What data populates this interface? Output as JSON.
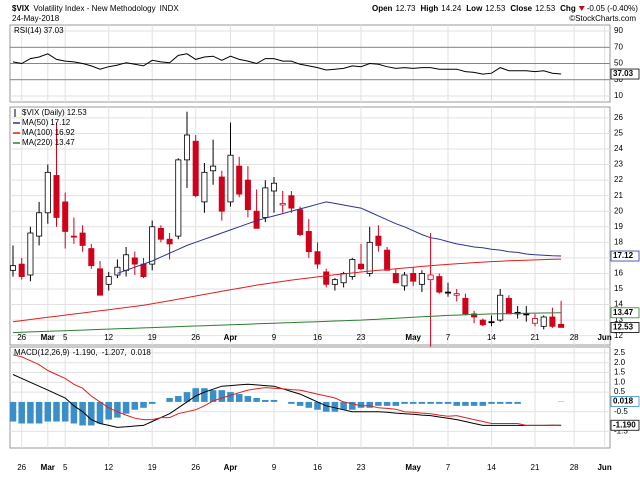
{
  "header": {
    "symbol": "$VIX",
    "name": "Volatility Index - New Methodology",
    "exchange": "INDX",
    "date": "24-May-2018",
    "credit": "©StockCharts.com",
    "quote": [
      {
        "label": "Open",
        "value": 12.73
      },
      {
        "label": "High",
        "value": 14.24
      },
      {
        "label": "Low",
        "value": 12.53
      },
      {
        "label": "Close",
        "value": 12.53
      },
      {
        "label": "Chg",
        "value": "-0.05 (-0.40%)"
      }
    ]
  },
  "chart_data": [
    {
      "type": "line",
      "grid": true,
      "xtick_labels": "none",
      "xlim": [
        -0.345,
        68.62
      ],
      "xticks": [
        {
          "value": 1,
          "label": "26"
        },
        {
          "value": 4,
          "label": "Mar"
        },
        {
          "value": 6,
          "label": "5"
        },
        {
          "value": 11,
          "label": "12"
        },
        {
          "value": 16,
          "label": "19"
        },
        {
          "value": 21,
          "label": "26"
        },
        {
          "value": 25,
          "label": "Apr"
        },
        {
          "value": 30,
          "label": "9"
        },
        {
          "value": 35,
          "label": "16"
        },
        {
          "value": 40,
          "label": "23"
        },
        {
          "value": 46,
          "label": "May"
        },
        {
          "value": 50,
          "label": "7"
        },
        {
          "value": 55,
          "label": "14"
        },
        {
          "value": 60,
          "label": "21"
        },
        {
          "value": 64.5,
          "label": "28"
        },
        {
          "value": 68,
          "label": "Jun"
        }
      ],
      "ylim": [
        2.6,
        97.4
      ],
      "yticks": [
        10,
        30,
        50,
        70,
        90
      ],
      "reference_lines": [
        30,
        50,
        70
      ],
      "series": [
        {
          "name": "RSI(14)",
          "color": "#000000",
          "last": 37.03,
          "axis_label": true,
          "values": [
            52,
            50,
            56,
            58,
            62,
            55,
            53,
            52,
            50,
            47,
            43,
            46,
            48,
            51,
            49,
            47,
            54,
            52,
            51,
            60,
            62,
            55,
            58,
            59,
            54,
            59,
            55,
            53,
            50,
            56,
            56,
            53,
            53,
            49,
            47,
            45,
            42,
            43,
            44,
            47,
            46,
            50,
            49,
            46,
            44,
            45,
            44,
            45,
            45,
            43,
            43,
            43,
            40,
            39,
            37,
            38,
            45,
            41,
            41,
            41,
            40,
            41,
            38,
            37.03
          ]
        }
      ]
    },
    {
      "type": "candlestick",
      "name": "$VIX (Daily)",
      "last": 12.53,
      "up_color": "#000000",
      "down_color": "#d0021b",
      "grid": true,
      "xtick_labels": "inside",
      "xlim": [
        -0.345,
        68.62
      ],
      "xticks": [
        {
          "value": 1,
          "label": "26"
        },
        {
          "value": 4,
          "label": "Mar"
        },
        {
          "value": 6,
          "label": "5"
        },
        {
          "value": 11,
          "label": "12"
        },
        {
          "value": 16,
          "label": "19"
        },
        {
          "value": 21,
          "label": "26"
        },
        {
          "value": 25,
          "label": "Apr"
        },
        {
          "value": 30,
          "label": "9"
        },
        {
          "value": 35,
          "label": "16"
        },
        {
          "value": 40,
          "label": "23"
        },
        {
          "value": 46,
          "label": "May"
        },
        {
          "value": 50,
          "label": "7"
        },
        {
          "value": 55,
          "label": "14"
        },
        {
          "value": 60,
          "label": "21"
        },
        {
          "value": 64.5,
          "label": "28"
        },
        {
          "value": 68,
          "label": "Jun"
        }
      ],
      "ylim": [
        11.4,
        26.7
      ],
      "yticks": [
        12,
        13,
        14,
        15,
        16,
        17,
        18,
        19,
        20,
        21,
        22,
        23,
        24,
        25,
        26
      ],
      "open": [
        16.2,
        16.6,
        15.9,
        18.4,
        19.9,
        22.3,
        20.6,
        18.4,
        18.6,
        17.6,
        16.3,
        15.3,
        15.9,
        16.2,
        17.0,
        16.6,
        16.6,
        18.9,
        18.2,
        18.4,
        23.3,
        24.5,
        20.6,
        22.6,
        22.2,
        20.6,
        22.9,
        22.0,
        20.0,
        19.6,
        21.3,
        20.4,
        21.0,
        20.1,
        18.7,
        17.4,
        16.1,
        15.3,
        15.4,
        15.8,
        16.6,
        16.0,
        18.4,
        17.5,
        16.0,
        15.2,
        16.0,
        15.3,
        15.6,
        15.8,
        14.8,
        14.6,
        14.4,
        13.4,
        13.0,
        12.9,
        13.0,
        14.4,
        13.5,
        13.4,
        12.8,
        12.6,
        13.2,
        12.73
      ],
      "high": [
        17.8,
        17.0,
        19.0,
        20.6,
        23.0,
        25.7,
        21.2,
        19.6,
        19.1,
        17.9,
        16.8,
        16.1,
        16.9,
        17.7,
        17.4,
        17.0,
        19.4,
        19.1,
        18.6,
        23.4,
        26.4,
        24.9,
        23.1,
        24.6,
        22.6,
        25.7,
        23.5,
        22.9,
        21.4,
        22.0,
        22.2,
        21.3,
        21.3,
        20.3,
        19.5,
        18.0,
        16.3,
        15.7,
        16.1,
        17.0,
        17.9,
        19.0,
        19.1,
        17.7,
        16.3,
        16.1,
        16.4,
        16.2,
        18.6,
        16.0,
        15.4,
        15.0,
        14.7,
        13.6,
        13.1,
        13.3,
        15.0,
        14.6,
        13.9,
        13.9,
        13.4,
        13.3,
        13.8,
        14.24
      ],
      "low": [
        15.8,
        15.6,
        15.5,
        17.8,
        19.2,
        19.0,
        17.6,
        17.9,
        17.4,
        16.3,
        14.6,
        14.9,
        15.7,
        15.8,
        15.9,
        15.7,
        16.2,
        18.0,
        16.9,
        18.2,
        21.5,
        20.9,
        19.9,
        21.7,
        19.4,
        20.3,
        20.9,
        19.6,
        18.9,
        19.3,
        19.9,
        19.9,
        19.9,
        18.4,
        17.0,
        16.3,
        15.1,
        14.9,
        15.1,
        15.6,
        16.2,
        15.8,
        17.4,
        16.2,
        15.4,
        14.9,
        15.2,
        14.8,
        11.0,
        14.7,
        14.5,
        14.2,
        13.3,
        12.8,
        12.6,
        12.6,
        12.9,
        13.4,
        13.1,
        12.9,
        12.6,
        12.4,
        12.5,
        12.53
      ],
      "close": [
        16.5,
        15.8,
        18.6,
        19.9,
        22.5,
        19.6,
        18.7,
        18.4,
        17.8,
        16.5,
        14.6,
        15.8,
        16.4,
        17.2,
        16.6,
        15.8,
        19.0,
        18.2,
        17.9,
        23.3,
        24.9,
        21.0,
        22.5,
        22.9,
        20.0,
        23.6,
        21.1,
        20.1,
        18.9,
        21.5,
        21.8,
        20.5,
        20.2,
        18.5,
        17.4,
        16.6,
        15.3,
        15.6,
        16.0,
        16.9,
        16.3,
        18.0,
        17.8,
        16.2,
        15.4,
        15.9,
        15.5,
        16.0,
        15.9,
        14.8,
        14.8,
        14.7,
        13.4,
        13.2,
        12.7,
        12.9,
        14.6,
        13.4,
        13.4,
        13.4,
        13.1,
        13.2,
        12.6,
        12.53
      ],
      "series": [
        {
          "name": "MA(50)",
          "color": "#2a3590",
          "last": 17.12,
          "axis_label": true,
          "values": [
            null,
            null,
            null,
            null,
            null,
            null,
            null,
            null,
            null,
            null,
            null,
            null,
            16.0,
            16.2,
            16.4,
            16.6,
            16.8,
            17.05,
            17.3,
            17.55,
            17.8,
            18.0,
            18.2,
            18.4,
            18.6,
            18.8,
            19.0,
            19.2,
            19.4,
            19.55,
            19.7,
            19.85,
            20.0,
            20.15,
            20.3,
            20.45,
            20.6,
            20.5,
            20.4,
            20.3,
            20.2,
            19.95,
            19.7,
            19.45,
            19.2,
            19.0,
            18.75,
            18.5,
            18.3,
            18.2,
            18.05,
            17.9,
            17.8,
            17.7,
            17.65,
            17.55,
            17.5,
            17.4,
            17.35,
            17.25,
            17.2,
            17.17,
            17.14,
            17.12
          ]
        },
        {
          "name": "MA(100)",
          "color": "#e02020",
          "last": 16.92,
          "axis_label": false,
          "values": [
            12.9,
            12.97,
            13.04,
            13.11,
            13.18,
            13.25,
            13.32,
            13.39,
            13.46,
            13.53,
            13.6,
            13.67,
            13.74,
            13.81,
            13.88,
            13.95,
            14.05,
            14.15,
            14.25,
            14.35,
            14.45,
            14.55,
            14.65,
            14.75,
            14.85,
            14.95,
            15.05,
            15.15,
            15.25,
            15.33,
            15.41,
            15.49,
            15.57,
            15.64,
            15.71,
            15.78,
            15.85,
            15.91,
            15.97,
            16.03,
            16.09,
            16.15,
            16.2,
            16.25,
            16.3,
            16.35,
            16.4,
            16.45,
            16.5,
            16.54,
            16.58,
            16.62,
            16.66,
            16.7,
            16.73,
            16.76,
            16.79,
            16.81,
            16.83,
            16.85,
            16.87,
            16.89,
            16.91,
            16.92
          ]
        },
        {
          "name": "MA(220)",
          "color": "#2e7d32",
          "last": 13.47,
          "axis_label": true,
          "values": [
            12.2,
            12.22,
            12.24,
            12.26,
            12.28,
            12.3,
            12.32,
            12.34,
            12.36,
            12.38,
            12.4,
            12.42,
            12.44,
            12.46,
            12.48,
            12.5,
            12.52,
            12.54,
            12.56,
            12.58,
            12.6,
            12.62,
            12.64,
            12.66,
            12.68,
            12.7,
            12.72,
            12.74,
            12.76,
            12.78,
            12.8,
            12.82,
            12.84,
            12.86,
            12.88,
            12.9,
            12.92,
            12.94,
            12.96,
            12.98,
            13.0,
            13.03,
            13.06,
            13.09,
            13.12,
            13.15,
            13.18,
            13.21,
            13.24,
            13.27,
            13.3,
            13.32,
            13.34,
            13.36,
            13.38,
            13.4,
            13.41,
            13.42,
            13.43,
            13.44,
            13.45,
            13.46,
            13.465,
            13.47
          ]
        }
      ]
    },
    {
      "type": "macd",
      "name": "MACD(12,26,9)",
      "legend_separator": ", ",
      "grid": true,
      "xtick_labels": "below",
      "xlim": [
        -0.345,
        68.62
      ],
      "xticks": [
        {
          "value": 1,
          "label": "26"
        },
        {
          "value": 4,
          "label": "Mar"
        },
        {
          "value": 6,
          "label": "5"
        },
        {
          "value": 11,
          "label": "12"
        },
        {
          "value": 16,
          "label": "19"
        },
        {
          "value": 21,
          "label": "26"
        },
        {
          "value": 25,
          "label": "Apr"
        },
        {
          "value": 30,
          "label": "9"
        },
        {
          "value": 35,
          "label": "16"
        },
        {
          "value": 40,
          "label": "23"
        },
        {
          "value": 46,
          "label": "May"
        },
        {
          "value": 50,
          "label": "7"
        },
        {
          "value": 55,
          "label": "14"
        },
        {
          "value": 60,
          "label": "21"
        },
        {
          "value": 64.5,
          "label": "28"
        },
        {
          "value": 68,
          "label": "Jun"
        }
      ],
      "ylim": [
        -2.35,
        2.8
      ],
      "yticks": [
        2.5,
        {
          "value": 2,
          "label": "2.0"
        },
        1.5,
        {
          "value": 1,
          "label": "1.0"
        },
        0.5,
        -0.5,
        -1.5
      ],
      "series": [
        {
          "style": "line",
          "color": "#000000",
          "last": {
            "value": -1.19,
            "label": "-1.190"
          },
          "axis_label": true,
          "values": [
            1.4,
            1.2,
            1.0,
            0.8,
            0.6,
            0.4,
            0.2,
            -0.2,
            -0.5,
            -0.9,
            -1.1,
            -1.2,
            -1.3,
            -1.27,
            -1.23,
            -1.2,
            -1.0,
            -0.8,
            -0.6,
            -0.3,
            0.0,
            0.3,
            0.5,
            0.65,
            0.8,
            0.83,
            0.87,
            0.9,
            0.87,
            0.83,
            0.8,
            0.67,
            0.53,
            0.4,
            0.2,
            0.0,
            -0.2,
            -0.3,
            -0.4,
            -0.5,
            -0.5,
            -0.5,
            -0.5,
            -0.53,
            -0.57,
            -0.6,
            -0.63,
            -0.67,
            -0.7,
            -0.77,
            -0.83,
            -0.9,
            -1.0,
            -1.1,
            -1.2,
            -1.2,
            -1.2,
            -1.2,
            -1.2,
            -1.2,
            -1.2,
            -1.2,
            -1.19,
            -1.19
          ]
        },
        {
          "style": "line",
          "color": "#e02020",
          "last": {
            "value": -1.207,
            "label": "-1.207"
          },
          "axis_label": false,
          "values": [
            2.4,
            2.3,
            2.1,
            1.9,
            1.6,
            1.4,
            1.2,
            0.9,
            0.7,
            0.3,
            0.0,
            -0.3,
            -0.5,
            -0.67,
            -0.83,
            -0.9,
            -0.9,
            -0.8,
            -0.8,
            -0.6,
            -0.5,
            -0.4,
            -0.2,
            0.05,
            0.2,
            0.33,
            0.47,
            0.6,
            0.67,
            0.73,
            0.7,
            0.67,
            0.63,
            0.6,
            0.5,
            0.4,
            0.3,
            0.2,
            0.0,
            -0.1,
            -0.2,
            -0.2,
            -0.3,
            -0.33,
            -0.37,
            -0.5,
            -0.53,
            -0.57,
            -0.6,
            -0.67,
            -0.73,
            -0.7,
            -0.8,
            -0.9,
            -1.0,
            -1.1,
            -1.1,
            -1.1,
            -1.1,
            -1.2,
            -1.2,
            -1.2,
            -1.19,
            -1.207
          ]
        },
        {
          "style": "histogram",
          "color": "#3a8fc8",
          "last": {
            "value": 0.018,
            "label": "0.018"
          },
          "axis_label": true,
          "values": [
            -1.0,
            -1.1,
            -1.1,
            -1.1,
            -1.0,
            -1.0,
            -1.0,
            -1.1,
            -1.2,
            -1.2,
            -1.1,
            -0.9,
            -0.8,
            -0.6,
            -0.4,
            -0.3,
            -0.1,
            0.0,
            0.2,
            0.3,
            0.5,
            0.7,
            0.7,
            0.6,
            0.6,
            0.5,
            0.4,
            0.3,
            0.2,
            0.1,
            0.1,
            0.0,
            -0.1,
            -0.2,
            -0.3,
            -0.4,
            -0.5,
            -0.5,
            -0.4,
            -0.4,
            -0.3,
            -0.3,
            -0.2,
            -0.2,
            -0.2,
            -0.1,
            -0.1,
            -0.1,
            -0.1,
            -0.1,
            -0.1,
            -0.2,
            -0.2,
            -0.2,
            -0.2,
            -0.1,
            -0.1,
            -0.1,
            -0.1,
            0.0,
            0.0,
            0.0,
            0.0,
            0.018
          ]
        }
      ]
    }
  ]
}
